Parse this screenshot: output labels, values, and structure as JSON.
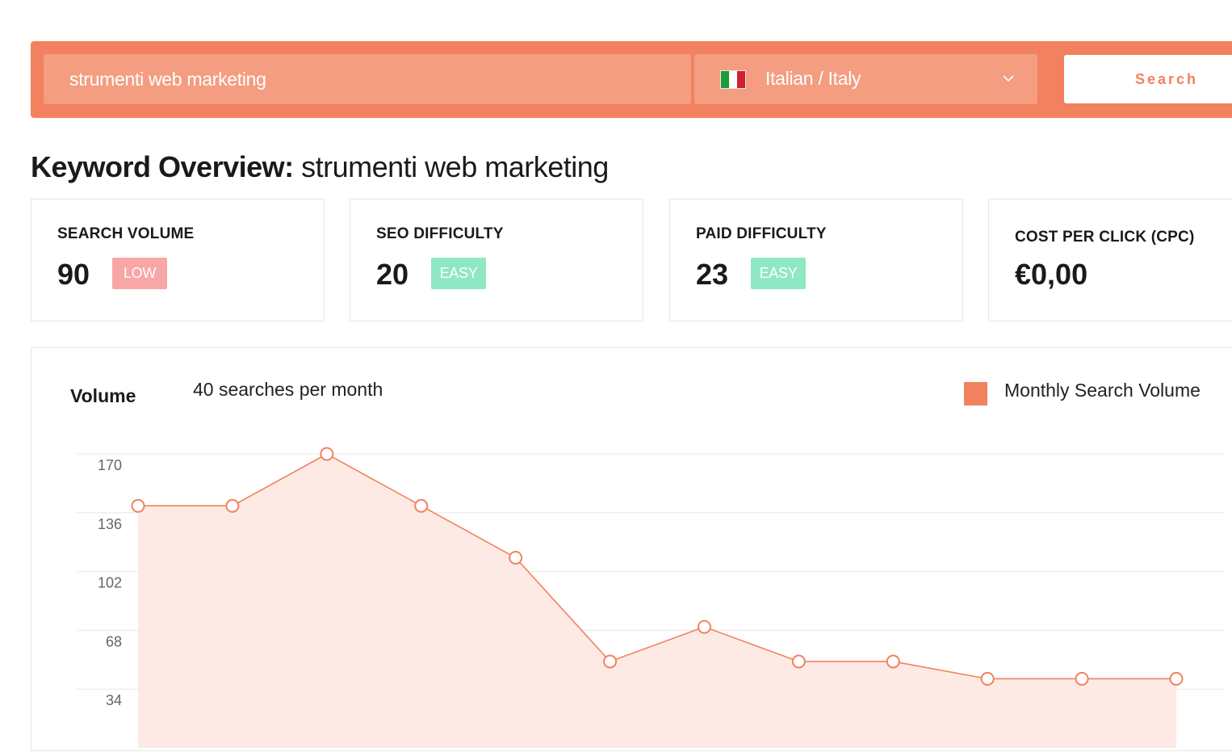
{
  "search": {
    "keyword": "strumenti web marketing",
    "language": "Italian / Italy",
    "button_label": "Search"
  },
  "overview": {
    "title_prefix": "Keyword Overview:",
    "title_keyword": "strumenti web marketing"
  },
  "cards": [
    {
      "label": "SEARCH VOLUME",
      "value": "90",
      "badge": "LOW",
      "badge_color": "#f9a6a6"
    },
    {
      "label": "SEO DIFFICULTY",
      "value": "20",
      "badge": "EASY",
      "badge_color": "#8ee8c4"
    },
    {
      "label": "PAID DIFFICULTY",
      "value": "23",
      "badge": "EASY",
      "badge_color": "#8ee8c4"
    },
    {
      "label": "COST PER CLICK (CPC)",
      "value": "€0,00"
    }
  ],
  "volume": {
    "label": "Volume",
    "subtitle": "40 searches per month",
    "legend": "Monthly Search Volume"
  },
  "colors": {
    "accent": "#f2815f",
    "input_bg": "#f49d80",
    "area_fill": "#fdeae4",
    "grid": "#e8e8e8"
  },
  "chart_data": {
    "type": "area",
    "series": [
      {
        "name": "Monthly Search Volume",
        "values": [
          140,
          140,
          170,
          140,
          110,
          50,
          70,
          50,
          50,
          40,
          40,
          40
        ]
      }
    ],
    "y_ticks": [
      34,
      68,
      102,
      136,
      170
    ],
    "ylim": [
      0,
      170
    ],
    "grid": true,
    "legend_position": "top-right"
  }
}
